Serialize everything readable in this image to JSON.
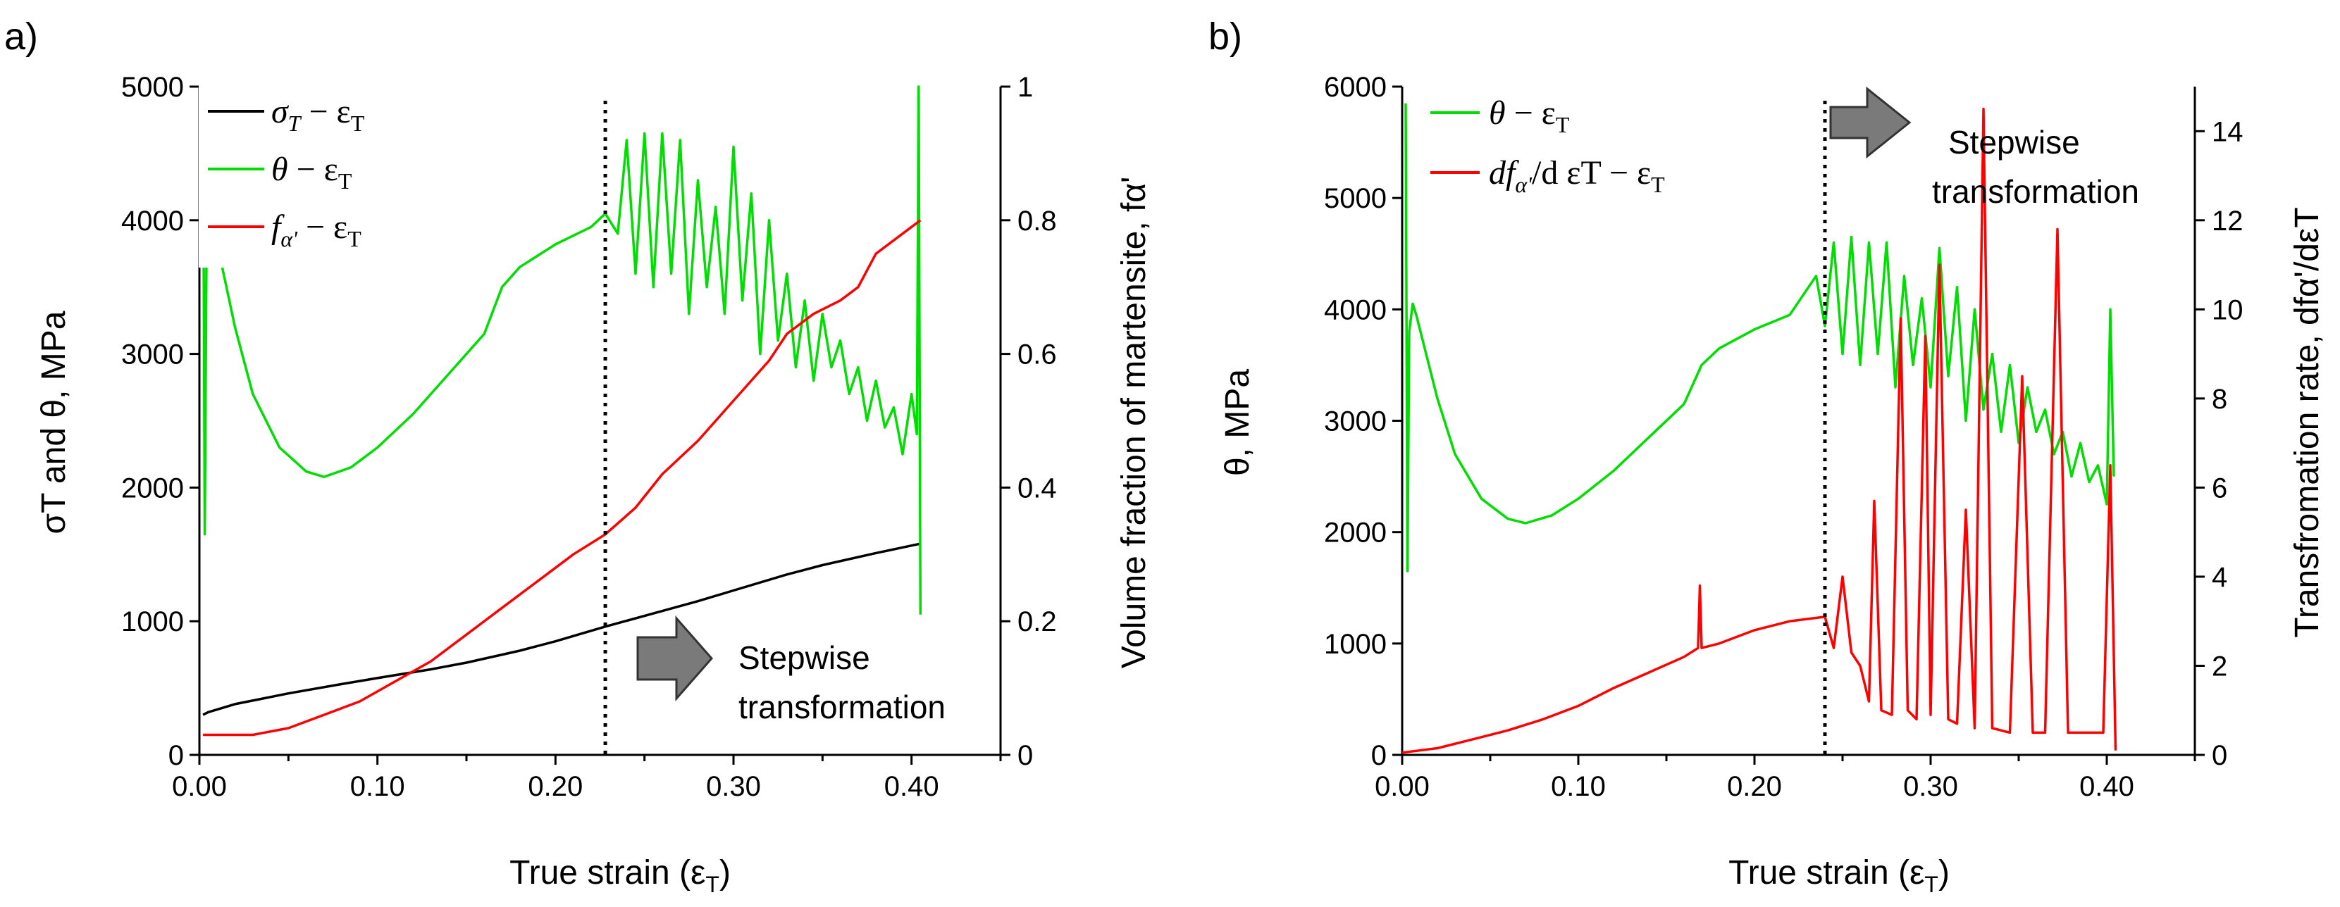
{
  "chart_data": [
    {
      "type": "line",
      "panel_label": "a)",
      "xlabel_main": "True strain (ε",
      "xlabel_sub": "T",
      "xlabel_tail": ")",
      "ylabel_left": "σT and θ, MPa",
      "ylabel_right": "Volume fraction of martensite, fα'",
      "xlim": [
        0,
        0.45
      ],
      "ylim_left": [
        0,
        5000
      ],
      "ylim_right": [
        0,
        1
      ],
      "x_ticks": [
        "0.00",
        "0.10",
        "0.20",
        "0.30",
        "0.40"
      ],
      "x_tick_values": [
        0,
        0.1,
        0.2,
        0.3,
        0.4
      ],
      "y_left_ticks": [
        "0",
        "1000",
        "2000",
        "3000",
        "4000",
        "5000"
      ],
      "y_left_tick_values": [
        0,
        1000,
        2000,
        3000,
        4000,
        5000
      ],
      "y_right_ticks": [
        "0",
        "0.2",
        "0.4",
        "0.6",
        "0.8",
        "1"
      ],
      "y_right_tick_values": [
        0,
        0.2,
        0.4,
        0.6,
        0.8,
        1
      ],
      "vline_x": 0.228,
      "annotation": [
        "Stepwise",
        "transformation"
      ],
      "legend_position": "top-left",
      "series": [
        {
          "name": "σT − εT",
          "legend": {
            "a": "σ",
            "b": "T",
            "c": " − ε",
            "d": "T"
          },
          "color": "#000000",
          "axis": "left",
          "x": [
            0.002,
            0.005,
            0.02,
            0.05,
            0.08,
            0.1,
            0.13,
            0.15,
            0.18,
            0.2,
            0.228,
            0.25,
            0.28,
            0.3,
            0.33,
            0.35,
            0.38,
            0.405
          ],
          "y": [
            300,
            320,
            380,
            460,
            530,
            575,
            640,
            690,
            780,
            850,
            960,
            1040,
            1150,
            1230,
            1350,
            1420,
            1510,
            1580
          ]
        },
        {
          "name": "θ − εT",
          "legend": {
            "a": "θ",
            "b": "",
            "c": " − ε",
            "d": "T"
          },
          "color": "#00dd00",
          "axis": "left",
          "x": [
            0.002,
            0.003,
            0.004,
            0.006,
            0.008,
            0.012,
            0.02,
            0.03,
            0.045,
            0.06,
            0.07,
            0.085,
            0.1,
            0.12,
            0.14,
            0.16,
            0.17,
            0.18,
            0.2,
            0.22,
            0.228,
            0.235,
            0.24,
            0.245,
            0.25,
            0.255,
            0.26,
            0.265,
            0.27,
            0.275,
            0.28,
            0.285,
            0.29,
            0.295,
            0.3,
            0.305,
            0.31,
            0.315,
            0.32,
            0.325,
            0.33,
            0.335,
            0.34,
            0.345,
            0.35,
            0.355,
            0.36,
            0.365,
            0.37,
            0.375,
            0.38,
            0.385,
            0.39,
            0.395,
            0.4,
            0.403,
            0.404,
            0.405
          ],
          "y": [
            5000,
            1650,
            3800,
            4050,
            3950,
            3700,
            3200,
            2700,
            2300,
            2120,
            2080,
            2150,
            2300,
            2550,
            2850,
            3150,
            3500,
            3650,
            3820,
            3950,
            4050,
            3900,
            4600,
            3600,
            4650,
            3500,
            4650,
            3600,
            4600,
            3300,
            4300,
            3500,
            4100,
            3300,
            4550,
            3400,
            4200,
            3000,
            4000,
            3100,
            3600,
            2900,
            3400,
            2800,
            3300,
            2900,
            3100,
            2700,
            2900,
            2500,
            2800,
            2450,
            2600,
            2250,
            2700,
            2400,
            5000,
            1050
          ]
        },
        {
          "name": "fα' − εT",
          "legend": {
            "a": "f",
            "b": "α'",
            "c": " − ε",
            "d": "T"
          },
          "color": "#ff0000",
          "axis": "right",
          "x": [
            0.002,
            0.03,
            0.05,
            0.07,
            0.09,
            0.11,
            0.13,
            0.15,
            0.17,
            0.19,
            0.21,
            0.228,
            0.245,
            0.26,
            0.28,
            0.3,
            0.32,
            0.33,
            0.345,
            0.36,
            0.37,
            0.38,
            0.395,
            0.405
          ],
          "y": [
            0.03,
            0.03,
            0.04,
            0.06,
            0.08,
            0.11,
            0.14,
            0.18,
            0.22,
            0.26,
            0.3,
            0.33,
            0.37,
            0.42,
            0.47,
            0.53,
            0.59,
            0.63,
            0.66,
            0.68,
            0.7,
            0.75,
            0.78,
            0.8
          ]
        }
      ]
    },
    {
      "type": "line",
      "panel_label": "b)",
      "xlabel_main": "True strain (ε",
      "xlabel_sub": "T",
      "xlabel_tail": ")",
      "ylabel_left": "θ, MPa",
      "ylabel_right": "Transfromation rate, dfα'/dεT",
      "xlim": [
        0,
        0.45
      ],
      "ylim_left": [
        0,
        6000
      ],
      "ylim_right": [
        0,
        15
      ],
      "x_ticks": [
        "0.00",
        "0.10",
        "0.20",
        "0.30",
        "0.40"
      ],
      "x_tick_values": [
        0,
        0.1,
        0.2,
        0.3,
        0.4
      ],
      "y_left_ticks": [
        "0",
        "1000",
        "2000",
        "3000",
        "4000",
        "5000",
        "6000"
      ],
      "y_left_tick_values": [
        0,
        1000,
        2000,
        3000,
        4000,
        5000,
        6000
      ],
      "y_right_ticks": [
        "0",
        "2",
        "4",
        "6",
        "8",
        "10",
        "12",
        "14"
      ],
      "y_right_tick_values": [
        0,
        2,
        4,
        6,
        8,
        10,
        12,
        14
      ],
      "vline_x": 0.24,
      "annotation": [
        "Stepwise",
        "transformation"
      ],
      "legend_position": "top-left",
      "series": [
        {
          "name": "θ − εT",
          "legend": {
            "a": "θ",
            "b": "",
            "c": " − ε",
            "d": "T"
          },
          "color": "#00dd00",
          "axis": "left",
          "x": [
            0.002,
            0.003,
            0.004,
            0.006,
            0.008,
            0.012,
            0.02,
            0.03,
            0.045,
            0.06,
            0.07,
            0.085,
            0.1,
            0.12,
            0.14,
            0.16,
            0.17,
            0.18,
            0.2,
            0.22,
            0.235,
            0.24,
            0.245,
            0.25,
            0.255,
            0.26,
            0.265,
            0.27,
            0.275,
            0.28,
            0.285,
            0.29,
            0.295,
            0.3,
            0.305,
            0.31,
            0.315,
            0.32,
            0.325,
            0.33,
            0.335,
            0.34,
            0.345,
            0.35,
            0.355,
            0.36,
            0.365,
            0.37,
            0.375,
            0.38,
            0.385,
            0.39,
            0.395,
            0.4,
            0.402,
            0.404
          ],
          "y": [
            5850,
            1650,
            3800,
            4050,
            3950,
            3700,
            3200,
            2700,
            2300,
            2120,
            2080,
            2150,
            2300,
            2550,
            2850,
            3150,
            3500,
            3650,
            3820,
            3950,
            4300,
            3850,
            4600,
            3600,
            4650,
            3500,
            4600,
            3600,
            4600,
            3300,
            4300,
            3500,
            4100,
            3300,
            4550,
            3400,
            4200,
            3000,
            4000,
            3100,
            3600,
            2900,
            3500,
            2800,
            3300,
            2900,
            3100,
            2700,
            2900,
            2500,
            2800,
            2450,
            2600,
            2250,
            4000,
            2500
          ]
        },
        {
          "name": "dfα'/dεT − εT",
          "legend": {
            "a": "df",
            "b": "α'",
            "c": "/d εT − ε",
            "d": "T"
          },
          "color": "#ff0000",
          "axis": "right",
          "x": [
            0.0,
            0.02,
            0.04,
            0.06,
            0.08,
            0.1,
            0.12,
            0.14,
            0.16,
            0.168,
            0.169,
            0.17,
            0.18,
            0.2,
            0.22,
            0.24,
            0.245,
            0.25,
            0.255,
            0.26,
            0.265,
            0.268,
            0.272,
            0.278,
            0.283,
            0.287,
            0.292,
            0.297,
            0.3,
            0.305,
            0.31,
            0.315,
            0.32,
            0.325,
            0.33,
            0.335,
            0.34,
            0.345,
            0.352,
            0.358,
            0.365,
            0.372,
            0.378,
            0.385,
            0.392,
            0.398,
            0.402,
            0.405
          ],
          "y": [
            0.05,
            0.15,
            0.35,
            0.55,
            0.8,
            1.1,
            1.5,
            1.85,
            2.2,
            2.4,
            3.8,
            2.4,
            2.5,
            2.8,
            3.0,
            3.1,
            2.4,
            4.0,
            2.3,
            2.0,
            1.2,
            5.7,
            1.0,
            0.9,
            9.8,
            1.0,
            0.8,
            9.4,
            0.9,
            11.0,
            0.8,
            0.7,
            5.5,
            0.6,
            14.5,
            0.6,
            0.55,
            0.5,
            8.5,
            0.5,
            0.5,
            11.8,
            0.5,
            0.5,
            0.5,
            0.5,
            6.5,
            0.1
          ]
        }
      ]
    }
  ]
}
